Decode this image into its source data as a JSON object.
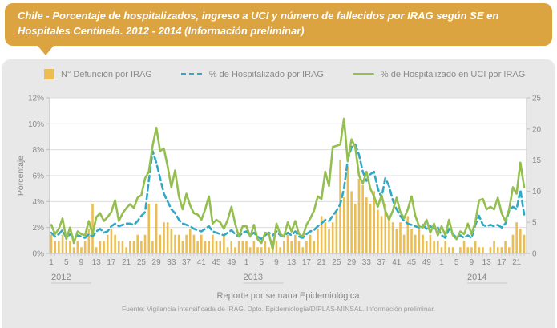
{
  "banner": {
    "title": "Chile - Porcentaje de hospitalizados, ingreso a UCI y número de fallecidos por IRAG según SE en Hospitales Centinela. 2012 - 2014 (Información preliminar)",
    "bg_color": "#DCA440"
  },
  "legend": [
    {
      "label": "N° Defunción por IRAG",
      "marker": "bar",
      "color": "#EBBE53"
    },
    {
      "label": "% de Hospitalizado por IRAG",
      "marker": "dashed-line",
      "color": "#31A8C4"
    },
    {
      "label": "% de Hospitalizado en UCI por IRAG",
      "marker": "solid-line",
      "color": "#94BF50"
    }
  ],
  "footer": {
    "xlabel": "Reporte por semana Epidemiológica",
    "fuente": "Fuente: Vigilancia intensificada de IRAG. Dpto. Epidemiología/DIPLAS-MINSAL. Información preliminar."
  },
  "chart_data": {
    "type": "bar",
    "subtype": "combo-bar-and-lines",
    "grid": true,
    "legend_position": "top",
    "x_axis": {
      "title": "Reporte por semana Epidemiológica",
      "years": [
        {
          "name": "2012",
          "weeks": 52,
          "tick_labels": [
            1,
            5,
            9,
            13,
            17,
            21,
            25,
            29,
            33,
            37,
            41,
            45,
            49
          ]
        },
        {
          "name": "2013",
          "weeks": 52,
          "tick_labels": [
            1,
            5,
            9,
            13,
            17,
            21,
            25,
            29,
            33,
            37,
            41,
            45,
            49
          ]
        },
        {
          "name": "2014",
          "weeks": 23,
          "tick_labels": [
            1,
            5,
            9,
            13,
            17,
            21
          ]
        }
      ]
    },
    "y_left": {
      "title": "Porcentaje",
      "min": 0,
      "max": 12,
      "tick_labels": [
        "0%",
        "2%",
        "4%",
        "6%",
        "8%",
        "10%",
        "12%"
      ],
      "tick_values": [
        0,
        2,
        4,
        6,
        8,
        10,
        12
      ]
    },
    "y_right": {
      "title": "",
      "min": 0,
      "max": 25,
      "tick_labels": [
        "0",
        "5",
        "10",
        "15",
        "20",
        "25"
      ],
      "tick_values": [
        0,
        5,
        10,
        15,
        20,
        25
      ]
    },
    "series": [
      {
        "name": "N° Defunción por IRAG",
        "type": "bar",
        "axis": "right",
        "color": "#EBBE53",
        "values": [
          3,
          2,
          2,
          3,
          2,
          2,
          1,
          2,
          1,
          2,
          4,
          8,
          1,
          2,
          2,
          3,
          4,
          3,
          2,
          2,
          1,
          2,
          2,
          3,
          2,
          3,
          8,
          2,
          8,
          3,
          5,
          5,
          4,
          3,
          3,
          2,
          3,
          4,
          3,
          2,
          3,
          2,
          2,
          3,
          2,
          2,
          3,
          1,
          2,
          1,
          2,
          2,
          2,
          1,
          2,
          1,
          1,
          2,
          1,
          2,
          2,
          1,
          2,
          3,
          2,
          3,
          2,
          1,
          2,
          3,
          2,
          4,
          6,
          5,
          4,
          5,
          7,
          15,
          9,
          14,
          10,
          8,
          12,
          11,
          9,
          8,
          10,
          7,
          6,
          8,
          6,
          5,
          4,
          5,
          3,
          6,
          4,
          3,
          4,
          3,
          2,
          3,
          2,
          2,
          1,
          2,
          1,
          1,
          0,
          1,
          2,
          1,
          1,
          2,
          1,
          1,
          0,
          1,
          2,
          1,
          1,
          2,
          1,
          3,
          5,
          4,
          3
        ]
      },
      {
        "name": "% de Hospitalizado por IRAG",
        "type": "line",
        "style": "dashed",
        "axis": "left",
        "color": "#31A8C4",
        "values": [
          1.6,
          1.3,
          1.5,
          1.8,
          1.2,
          1.5,
          1.2,
          1.4,
          1.3,
          1.2,
          1.5,
          1.3,
          1.7,
          1.9,
          1.6,
          1.7,
          2.1,
          2.3,
          2.1,
          2.2,
          2.3,
          2.3,
          2.2,
          2.5,
          2.9,
          3.2,
          5.6,
          7.9,
          7.0,
          5.8,
          4.6,
          4.0,
          3.4,
          3.1,
          2.6,
          2.3,
          2.2,
          2.1,
          1.9,
          1.8,
          1.7,
          1.9,
          2.1,
          1.7,
          1.6,
          1.5,
          1.4,
          1.6,
          1.8,
          1.5,
          1.3,
          1.6,
          1.7,
          1.4,
          1.6,
          1.3,
          1.1,
          1.4,
          1.6,
          1.4,
          1.7,
          1.4,
          1.3,
          1.6,
          1.4,
          1.7,
          1.3,
          1.2,
          1.5,
          1.7,
          1.8,
          2.1,
          2.3,
          2.6,
          2.5,
          2.9,
          3.3,
          3.8,
          5.0,
          7.2,
          8.2,
          8.4,
          7.6,
          6.3,
          5.6,
          6.1,
          6.3,
          5.0,
          4.3,
          5.8,
          5.2,
          4.1,
          3.4,
          2.9,
          2.5,
          2.3,
          2.2,
          2.1,
          2.0,
          2.2,
          1.9,
          2.1,
          1.9,
          2.0,
          1.4,
          1.2,
          1.9,
          1.5,
          1.2,
          1.4,
          1.2,
          1.4,
          1.2,
          2.2,
          2.9,
          2.2,
          2.1,
          2.2,
          2.1,
          2.2,
          2.0,
          2.3,
          3.3,
          3.6,
          3.4,
          4.9,
          3.0
        ]
      },
      {
        "name": "% de Hospitalizado en UCI por IRAG",
        "type": "line",
        "style": "solid",
        "axis": "left",
        "color": "#94BF50",
        "values": [
          2.2,
          1.5,
          1.9,
          2.7,
          1.1,
          2.0,
          0.8,
          1.7,
          1.5,
          1.4,
          2.5,
          1.5,
          2.8,
          3.1,
          2.5,
          2.8,
          3.2,
          4.1,
          2.5,
          3.1,
          3.5,
          3.8,
          3.5,
          4.3,
          4.5,
          5.8,
          6.3,
          8.3,
          9.7,
          7.9,
          8.1,
          6.7,
          5.1,
          6.4,
          4.4,
          3.4,
          4.6,
          3.7,
          3.1,
          3.0,
          2.6,
          3.4,
          4.4,
          2.3,
          2.6,
          2.4,
          1.9,
          2.6,
          3.6,
          2.3,
          1.3,
          2.1,
          2.1,
          1.3,
          2.2,
          1.1,
          0.8,
          1.6,
          1.5,
          0.3,
          2.3,
          1.5,
          1.3,
          2.4,
          1.7,
          2.5,
          1.5,
          1.3,
          2.2,
          2.7,
          3.3,
          4.4,
          4.2,
          6.3,
          5.2,
          8.2,
          8.3,
          8.4,
          10.4,
          7.1,
          8.8,
          8.2,
          6.0,
          5.4,
          6.3,
          5.0,
          4.4,
          3.6,
          4.5,
          3.3,
          2.6,
          3.3,
          4.3,
          3.2,
          2.7,
          3.4,
          4.4,
          2.9,
          2.1,
          2.0,
          2.6,
          1.6,
          2.3,
          1.4,
          2.1,
          1.4,
          2.6,
          1.4,
          1.1,
          1.7,
          1.5,
          2.3,
          1.5,
          2.4,
          4.1,
          4.2,
          3.4,
          3.6,
          3.4,
          4.3,
          3.1,
          2.5,
          3.4,
          5.1,
          4.6,
          7.0,
          5.1
        ]
      }
    ]
  }
}
